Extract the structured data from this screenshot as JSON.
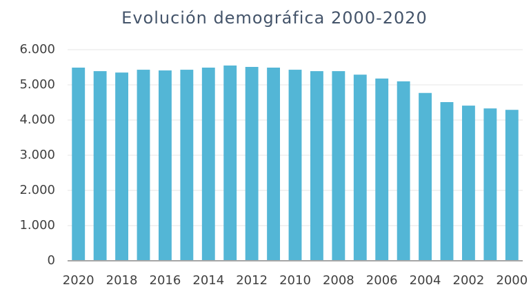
{
  "chart_data": {
    "type": "bar",
    "title": "Evolución demográfica 2000-2020",
    "categories": [
      "2020",
      null,
      "2018",
      null,
      "2016",
      null,
      "2014",
      null,
      "2012",
      null,
      "2010",
      null,
      "2008",
      null,
      "2006",
      null,
      "2004",
      null,
      "2002",
      null,
      "2000"
    ],
    "values": [
      5490,
      5390,
      5350,
      5430,
      5410,
      5430,
      5490,
      5550,
      5510,
      5490,
      5430,
      5390,
      5390,
      5290,
      5180,
      5100,
      4770,
      4510,
      4410,
      4330,
      4290
    ],
    "color": "#53b6d6",
    "ylim": [
      0,
      6000
    ],
    "yticks": [
      0,
      {
        "value": 1000,
        "label": "1.000"
      },
      {
        "value": 2000,
        "label": "2.000"
      },
      {
        "value": 3000,
        "label": "3.000"
      },
      {
        "value": 4000,
        "label": "4.000"
      },
      {
        "value": 5000,
        "label": "5.000"
      },
      {
        "value": 6000,
        "label": "6.000"
      }
    ],
    "grid": true
  }
}
